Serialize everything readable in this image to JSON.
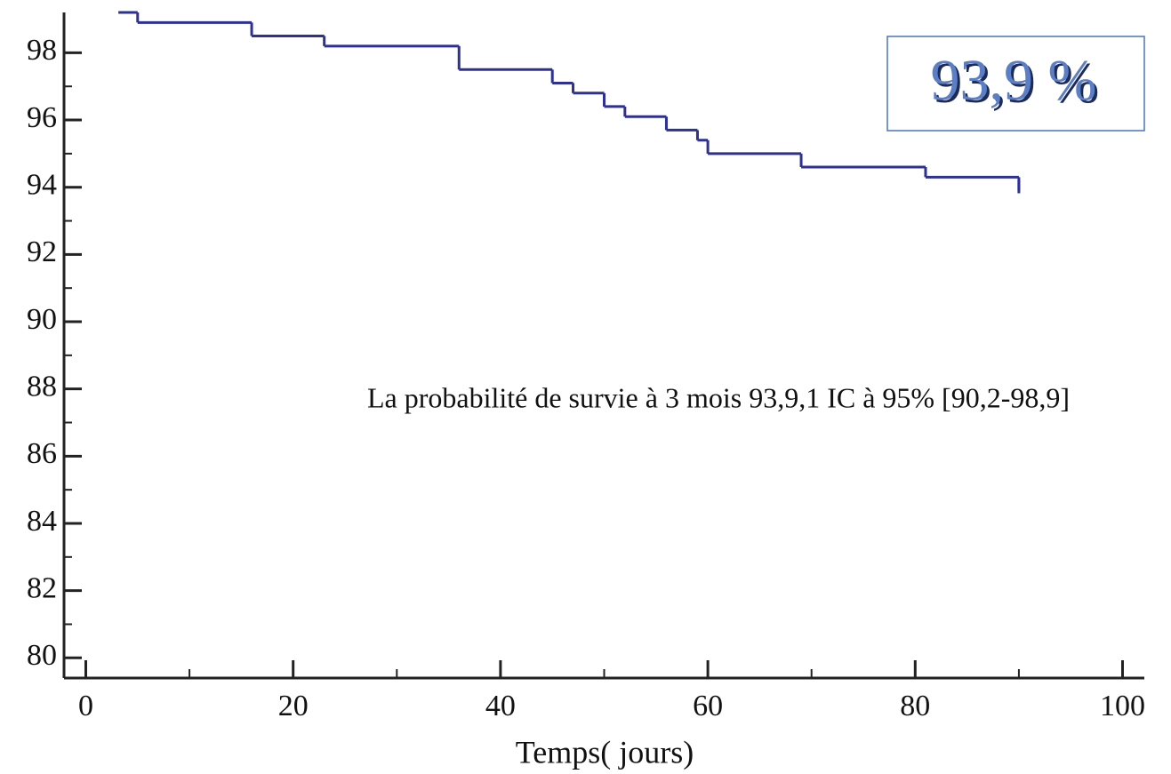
{
  "chart_data": {
    "type": "step",
    "x_label": "Temps( jours)",
    "annotation": "La probabilité de survie à 3 mois 93,9,1 IC à 95% [90,2-98,9]",
    "highlight": "93,9 %",
    "x": [
      4,
      5,
      16,
      23,
      36,
      45,
      47,
      50,
      52,
      56,
      59,
      60,
      69,
      81,
      90
    ],
    "series": [
      {
        "color": "#2e3192",
        "values": [
          99.2,
          98.9,
          98.5,
          98.2,
          97.5,
          97.1,
          96.8,
          96.4,
          96.1,
          95.7,
          95.4,
          95.0,
          94.6,
          94.3,
          93.9
        ]
      }
    ],
    "xlim": [
      -2.1,
      102.1
    ],
    "xticks": [
      0,
      20,
      40,
      60,
      80,
      100
    ],
    "ylim": [
      79.4,
      99.2
    ],
    "yticks": [
      80,
      82,
      84,
      86,
      88,
      90,
      92,
      94,
      96,
      98
    ]
  }
}
